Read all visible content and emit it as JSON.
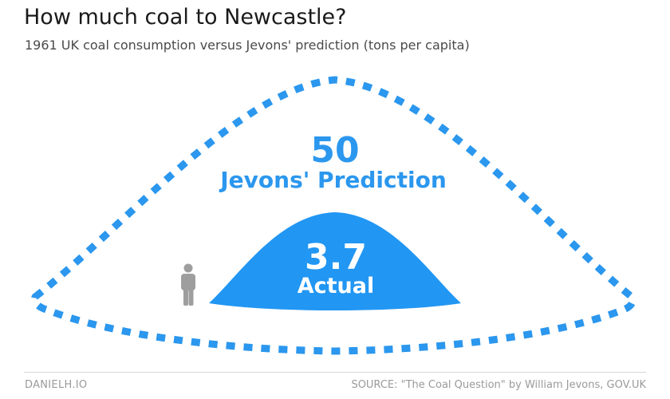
{
  "header": {
    "title": "How much coal to Newcastle?",
    "subtitle": "1961 UK coal consumption versus Jevons' prediction (tons per capita)"
  },
  "footer": {
    "credit": "DANIELH.IO",
    "source": "SOURCE: \"The Coal Question\" by William Jevons, GOV.UK"
  },
  "chart_data": {
    "type": "area",
    "title": "How much coal to Newcastle?",
    "subtitle": "1961 UK coal consumption versus Jevons' prediction (tons per capita)",
    "unit": "tons per capita",
    "series": [
      {
        "name": "Jevons' Prediction",
        "value": 50,
        "label": "50",
        "color": "#2b97ee",
        "style": "dashed-outline"
      },
      {
        "name": "Actual",
        "value": 3.7,
        "label": "3.7",
        "color": "#2196f3",
        "style": "filled"
      }
    ],
    "scale_reference": "person-icon"
  },
  "colors": {
    "accent": "#2196f3",
    "person": "#9e9e9e"
  }
}
